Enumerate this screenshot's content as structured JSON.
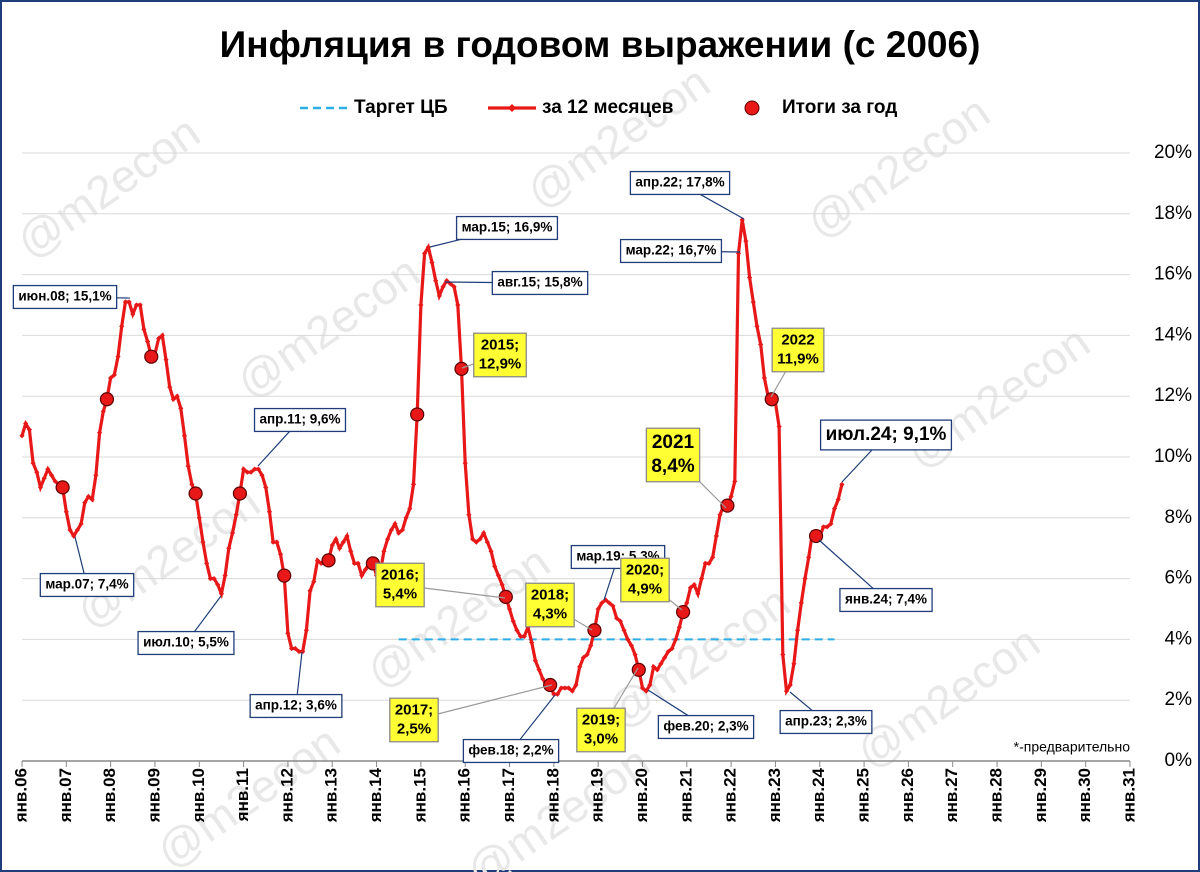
{
  "chart_data": {
    "type": "line",
    "title": "Инфляция в годовом выражении (с 2006)",
    "note": "*-предварительно",
    "watermark": "@m2econ",
    "xlim": [
      0,
      300
    ],
    "xticks": [
      {
        "value": 0,
        "label": "янв.06"
      },
      {
        "value": 12,
        "label": "янв.07"
      },
      {
        "value": 24,
        "label": "янв.08"
      },
      {
        "value": 36,
        "label": "янв.09"
      },
      {
        "value": 48,
        "label": "янв.10"
      },
      {
        "value": 60,
        "label": "янв.11"
      },
      {
        "value": 72,
        "label": "янв.12"
      },
      {
        "value": 84,
        "label": "янв.13"
      },
      {
        "value": 96,
        "label": "янв.14"
      },
      {
        "value": 108,
        "label": "янв.15"
      },
      {
        "value": 120,
        "label": "янв.16"
      },
      {
        "value": 132,
        "label": "янв.17"
      },
      {
        "value": 144,
        "label": "янв.18"
      },
      {
        "value": 156,
        "label": "янв.19"
      },
      {
        "value": 168,
        "label": "янв.20"
      },
      {
        "value": 180,
        "label": "янв.21"
      },
      {
        "value": 192,
        "label": "янв.22"
      },
      {
        "value": 204,
        "label": "янв.23"
      },
      {
        "value": 216,
        "label": "янв.24"
      },
      {
        "value": 228,
        "label": "янв.25"
      },
      {
        "value": 240,
        "label": "янв.26"
      },
      {
        "value": 252,
        "label": "янв.27"
      },
      {
        "value": 264,
        "label": "янв.28"
      },
      {
        "value": 276,
        "label": "янв.29"
      },
      {
        "value": 288,
        "label": "янв.30"
      },
      {
        "value": 300,
        "label": "янв.31"
      }
    ],
    "ylim": [
      0,
      20
    ],
    "yticks": [
      {
        "value": 0,
        "label": "0%"
      },
      {
        "value": 2,
        "label": "2%"
      },
      {
        "value": 4,
        "label": "4%"
      },
      {
        "value": 6,
        "label": "6%"
      },
      {
        "value": 8,
        "label": "8%"
      },
      {
        "value": 10,
        "label": "10%"
      },
      {
        "value": 12,
        "label": "12%"
      },
      {
        "value": 14,
        "label": "14%"
      },
      {
        "value": 16,
        "label": "16%"
      },
      {
        "value": 18,
        "label": "18%"
      },
      {
        "value": 20,
        "label": "20%"
      }
    ],
    "grid": true,
    "series": [
      {
        "name": "Таргет ЦБ",
        "color": "#2eaee6",
        "style": "dashed",
        "x": [
          102,
          220
        ],
        "values": [
          4,
          4
        ]
      },
      {
        "name": "за 12 месяцев",
        "color": "#e81818",
        "style": "line",
        "x": [
          0,
          1,
          2,
          3,
          4,
          5,
          6,
          7,
          8,
          9,
          10,
          11,
          12,
          13,
          14,
          15,
          16,
          17,
          18,
          19,
          20,
          21,
          22,
          23,
          24,
          25,
          26,
          27,
          28,
          29,
          30,
          31,
          32,
          33,
          34,
          35,
          36,
          37,
          38,
          39,
          40,
          41,
          42,
          43,
          44,
          45,
          46,
          47,
          48,
          49,
          50,
          51,
          52,
          53,
          54,
          55,
          56,
          57,
          58,
          59,
          60,
          61,
          62,
          63,
          64,
          65,
          66,
          67,
          68,
          69,
          70,
          71,
          72,
          73,
          74,
          75,
          76,
          77,
          78,
          79,
          80,
          81,
          82,
          83,
          84,
          85,
          86,
          87,
          88,
          89,
          90,
          91,
          92,
          93,
          94,
          95,
          96,
          97,
          98,
          99,
          100,
          101,
          102,
          103,
          104,
          105,
          106,
          107,
          108,
          109,
          110,
          111,
          112,
          113,
          114,
          115,
          116,
          117,
          118,
          119,
          120,
          121,
          122,
          123,
          124,
          125,
          126,
          127,
          128,
          129,
          130,
          131,
          132,
          133,
          134,
          135,
          136,
          137,
          138,
          139,
          140,
          141,
          142,
          143,
          144,
          145,
          146,
          147,
          148,
          149,
          150,
          151,
          152,
          153,
          154,
          155,
          156,
          157,
          158,
          159,
          160,
          161,
          162,
          163,
          164,
          165,
          166,
          167,
          168,
          169,
          170,
          171,
          172,
          173,
          174,
          175,
          176,
          177,
          178,
          179,
          180,
          181,
          182,
          183,
          184,
          185,
          186,
          187,
          188,
          189,
          190,
          191,
          192,
          193,
          194,
          195,
          196,
          197,
          198,
          199,
          200,
          201,
          202,
          203,
          204,
          205,
          206,
          207,
          208,
          209,
          210,
          211,
          212,
          213,
          214,
          215,
          216,
          217,
          218,
          219,
          220,
          221,
          222
        ],
        "values": [
          10.7,
          11.1,
          10.9,
          9.8,
          9.5,
          9.0,
          9.3,
          9.6,
          9.4,
          9.2,
          9.1,
          9.0,
          8.2,
          7.6,
          7.4,
          7.6,
          7.8,
          8.5,
          8.7,
          8.6,
          9.4,
          10.8,
          11.5,
          11.9,
          12.6,
          12.7,
          13.3,
          14.3,
          15.1,
          15.1,
          14.7,
          15.0,
          15.0,
          14.2,
          13.8,
          13.3,
          13.4,
          13.9,
          14.0,
          13.2,
          12.3,
          11.9,
          12.0,
          11.6,
          10.7,
          9.7,
          9.1,
          8.8,
          8.0,
          7.2,
          6.5,
          6.0,
          6.0,
          5.8,
          5.5,
          6.1,
          7.0,
          7.5,
          8.1,
          8.8,
          9.6,
          9.5,
          9.5,
          9.6,
          9.6,
          9.4,
          9.0,
          8.2,
          7.2,
          7.2,
          6.8,
          6.1,
          4.2,
          3.7,
          3.7,
          3.6,
          3.6,
          4.3,
          5.6,
          5.9,
          6.6,
          6.5,
          6.5,
          6.6,
          7.1,
          7.3,
          7.0,
          7.2,
          7.4,
          6.9,
          6.5,
          6.5,
          6.1,
          6.3,
          6.5,
          6.5,
          6.1,
          6.2,
          6.9,
          7.3,
          7.6,
          7.8,
          7.5,
          7.6,
          8.0,
          8.3,
          9.1,
          11.4,
          15.0,
          16.7,
          16.9,
          16.4,
          15.8,
          15.3,
          15.6,
          15.8,
          15.7,
          15.6,
          15.0,
          12.9,
          9.8,
          8.1,
          7.3,
          7.2,
          7.3,
          7.5,
          7.2,
          6.9,
          6.4,
          6.1,
          5.8,
          5.4,
          5.0,
          4.6,
          4.3,
          4.1,
          4.1,
          4.4,
          3.9,
          3.3,
          3.0,
          2.7,
          2.5,
          2.5,
          2.2,
          2.2,
          2.4,
          2.4,
          2.4,
          2.3,
          2.5,
          3.1,
          3.4,
          3.5,
          3.8,
          4.3,
          5.0,
          5.2,
          5.3,
          5.2,
          5.1,
          4.7,
          4.6,
          4.3,
          4.0,
          3.8,
          3.5,
          3.0,
          2.4,
          2.3,
          2.5,
          3.1,
          3.0,
          3.2,
          3.4,
          3.6,
          3.7,
          4.0,
          4.4,
          4.9,
          5.2,
          5.7,
          5.8,
          5.5,
          6.0,
          6.5,
          6.5,
          6.7,
          7.4,
          8.1,
          8.4,
          8.4,
          8.7,
          9.2,
          16.7,
          17.8,
          17.1,
          15.9,
          15.1,
          14.3,
          13.7,
          12.6,
          12.0,
          11.9,
          11.8,
          11.0,
          3.5,
          2.3,
          2.5,
          3.2,
          4.3,
          5.2,
          6.0,
          6.7,
          7.5,
          7.4,
          7.4,
          7.7,
          7.7,
          7.8,
          8.3,
          8.6,
          9.1
        ]
      },
      {
        "name": "Итоги за год",
        "color": "#e81818",
        "style": "dots",
        "x": [
          11,
          23,
          35,
          47,
          59,
          71,
          83,
          95,
          107,
          119,
          131,
          143,
          155,
          167,
          179,
          191,
          203,
          215
        ],
        "values": [
          9.0,
          11.9,
          13.3,
          8.8,
          8.8,
          6.1,
          6.6,
          6.5,
          11.4,
          12.9,
          5.4,
          2.5,
          4.3,
          3.0,
          4.9,
          8.4,
          11.9,
          7.4
        ]
      }
    ],
    "annotations": [
      {
        "lines": [
          "июн.08; 15,1%"
        ],
        "style": "white"
      },
      {
        "lines": [
          "мар.07; 7,4%"
        ],
        "style": "white"
      },
      {
        "lines": [
          "июл.10; 5,5%"
        ],
        "style": "white"
      },
      {
        "lines": [
          "апр.11; 9,6%"
        ],
        "style": "white"
      },
      {
        "lines": [
          "апр.12; 3,6%"
        ],
        "style": "white"
      },
      {
        "lines": [
          "мар.15; 16,9%"
        ],
        "style": "white"
      },
      {
        "lines": [
          "авг.15; 15,8%"
        ],
        "style": "white"
      },
      {
        "lines": [
          "2015;",
          "12,9%"
        ],
        "style": "yellow"
      },
      {
        "lines": [
          "2016;",
          "5,4%"
        ],
        "style": "yellow"
      },
      {
        "lines": [
          "2017;",
          "2,5%"
        ],
        "style": "yellow"
      },
      {
        "lines": [
          "2018;",
          "4,3%"
        ],
        "style": "yellow"
      },
      {
        "lines": [
          "фев.18; 2,2%"
        ],
        "style": "white"
      },
      {
        "lines": [
          "мар.19; 5,3%"
        ],
        "style": "white"
      },
      {
        "lines": [
          "2019;",
          "3,0%"
        ],
        "style": "yellow"
      },
      {
        "lines": [
          "2020;",
          "4,9%"
        ],
        "style": "yellow"
      },
      {
        "lines": [
          "фев.20; 2,3%"
        ],
        "style": "white"
      },
      {
        "lines": [
          "2021",
          "8,4%"
        ],
        "style": "yellow-big"
      },
      {
        "lines": [
          "апр.22; 17,8%"
        ],
        "style": "white"
      },
      {
        "lines": [
          "мар.22; 16,7%"
        ],
        "style": "white"
      },
      {
        "lines": [
          "2022",
          "11,9%"
        ],
        "style": "yellow"
      },
      {
        "lines": [
          "апр.23; 2,3%"
        ],
        "style": "white"
      },
      {
        "lines": [
          "янв.24; 7,4%"
        ],
        "style": "white"
      },
      {
        "lines": [
          "июл.24; 9,1%"
        ],
        "style": "white-big"
      }
    ]
  }
}
